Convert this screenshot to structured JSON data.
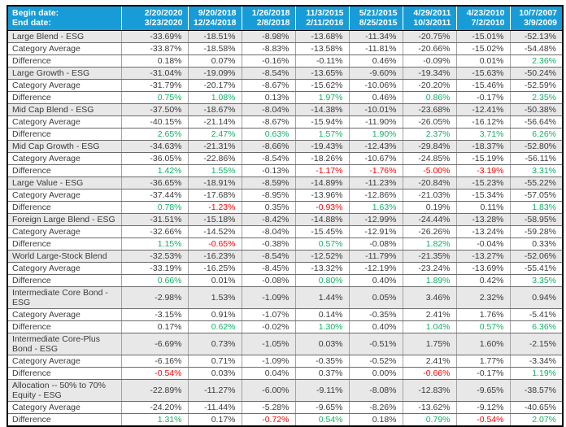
{
  "colors": {
    "header_bg": "#189CD8",
    "header_text": "#FFFFFF",
    "esg_row_bg": "#E8E8E8",
    "body_text": "#3B3B3B",
    "positive_green": "#10B262",
    "negative_red": "#FF0000",
    "difference_color_threshold": 0.5
  },
  "header": {
    "begin_label": "Begin date:",
    "end_label": "End date:"
  },
  "labels": {
    "category_average": "Category Average",
    "difference": "Difference"
  },
  "chart_data": {
    "type": "table",
    "columns": [
      {
        "begin": "2/20/2020",
        "end": "3/23/2020"
      },
      {
        "begin": "9/20/2018",
        "end": "12/24/2018"
      },
      {
        "begin": "1/26/2018",
        "end": "2/8/2018"
      },
      {
        "begin": "11/3/2015",
        "end": "2/11/2016"
      },
      {
        "begin": "5/21/2015",
        "end": "8/25/2015"
      },
      {
        "begin": "4/29/2011",
        "end": "10/3/2011"
      },
      {
        "begin": "4/23/2010",
        "end": "7/2/2010"
      },
      {
        "begin": "10/7/2007",
        "end": "3/9/2009"
      }
    ],
    "sections": [
      {
        "label": "Large Blend - ESG",
        "esg": [
          "-33.69%",
          "-18.51%",
          "-8.98%",
          "-13.68%",
          "-11.34%",
          "-20.75%",
          "-15.01%",
          "-52.13%"
        ],
        "category_average": [
          "-33.87%",
          "-18.58%",
          "-8.83%",
          "-13.58%",
          "-11.81%",
          "-20.66%",
          "-15.02%",
          "-54.48%"
        ],
        "difference": [
          "0.18%",
          "0.07%",
          "-0.16%",
          "-0.11%",
          "0.46%",
          "-0.09%",
          "0.01%",
          "2.36%"
        ]
      },
      {
        "label": "Large Growth - ESG",
        "esg": [
          "-31.04%",
          "-19.09%",
          "-8.54%",
          "-13.65%",
          "-9.60%",
          "-19.34%",
          "-15.63%",
          "-50.24%"
        ],
        "category_average": [
          "-31.79%",
          "-20.17%",
          "-8.67%",
          "-15.62%",
          "-10.06%",
          "-20.20%",
          "-15.46%",
          "-52.59%"
        ],
        "difference": [
          "0.75%",
          "1.08%",
          "0.13%",
          "1.97%",
          "0.46%",
          "0.86%",
          "-0.17%",
          "2.35%"
        ]
      },
      {
        "label": "Mid Cap Blend - ESG",
        "esg": [
          "-37.50%",
          "-18.67%",
          "-8.04%",
          "-14.38%",
          "-10.01%",
          "-23.68%",
          "-12.41%",
          "-50.38%"
        ],
        "category_average": [
          "-40.15%",
          "-21.14%",
          "-8.67%",
          "-15.94%",
          "-11.90%",
          "-26.05%",
          "-16.12%",
          "-56.64%"
        ],
        "difference": [
          "2.65%",
          "2.47%",
          "0.63%",
          "1.57%",
          "1.90%",
          "2.37%",
          "3.71%",
          "6.26%"
        ]
      },
      {
        "label": "Mid Cap Growth - ESG",
        "esg": [
          "-34.63%",
          "-21.31%",
          "-8.66%",
          "-19.43%",
          "-12.43%",
          "-29.84%",
          "-18.37%",
          "-52.80%"
        ],
        "category_average": [
          "-36.05%",
          "-22.86%",
          "-8.54%",
          "-18.26%",
          "-10.67%",
          "-24.85%",
          "-15.19%",
          "-56.11%"
        ],
        "difference": [
          "1.42%",
          "1.55%",
          "-0.13%",
          "-1.17%",
          "-1.76%",
          "-5.00%",
          "-3.19%",
          "3.31%"
        ]
      },
      {
        "label": "Large Value - ESG",
        "esg": [
          "-36.65%",
          "-18.91%",
          "-8.59%",
          "-14.89%",
          "-11.23%",
          "-20.84%",
          "-15.23%",
          "-55.22%"
        ],
        "category_average": [
          "-37.44%",
          "-17.68%",
          "-8.95%",
          "-13.96%",
          "-12.86%",
          "-21.03%",
          "-15.34%",
          "-57.05%"
        ],
        "difference": [
          "0.78%",
          "-1.23%",
          "0.35%",
          "-0.93%",
          "1.63%",
          "0.19%",
          "0.11%",
          "1.83%"
        ]
      },
      {
        "label": "Foreign Large Blend - ESG",
        "esg": [
          "-31.51%",
          "-15.18%",
          "-8.42%",
          "-14.88%",
          "-12.99%",
          "-24.44%",
          "-13.28%",
          "-58.95%"
        ],
        "category_average": [
          "-32.66%",
          "-14.52%",
          "-8.04%",
          "-15.45%",
          "-12.91%",
          "-26.26%",
          "-13.24%",
          "-59.28%"
        ],
        "difference": [
          "1.15%",
          "-0.65%",
          "-0.38%",
          "0.57%",
          "-0.08%",
          "1.82%",
          "-0.04%",
          "0.33%"
        ]
      },
      {
        "label": "World Large-Stock Blend",
        "esg": [
          "-32.53%",
          "-16.23%",
          "-8.54%",
          "-12.52%",
          "-11.79%",
          "-21.35%",
          "-13.27%",
          "-52.06%"
        ],
        "category_average": [
          "-33.19%",
          "-16.25%",
          "-8.45%",
          "-13.32%",
          "-12.19%",
          "-23.24%",
          "-13.69%",
          "-55.41%"
        ],
        "difference": [
          "0.66%",
          "0.01%",
          "-0.08%",
          "0.80%",
          "0.40%",
          "1.89%",
          "0.42%",
          "3.35%"
        ]
      },
      {
        "label": "Intermediate Core Bond - ESG",
        "esg": [
          "-2.98%",
          "1.53%",
          "-1.09%",
          "1.44%",
          "0.05%",
          "3.46%",
          "2.32%",
          "0.94%"
        ],
        "category_average": [
          "-3.15%",
          "0.91%",
          "-1.07%",
          "0.14%",
          "-0.35%",
          "2.41%",
          "1.76%",
          "-5.41%"
        ],
        "difference": [
          "0.17%",
          "0.62%",
          "-0.02%",
          "1.30%",
          "0.40%",
          "1.04%",
          "0.57%",
          "6.36%"
        ]
      },
      {
        "label": "Intermediate Core-Plus Bond - ESG",
        "esg": [
          "-6.69%",
          "0.73%",
          "-1.05%",
          "0.03%",
          "-0.51%",
          "1.75%",
          "1.60%",
          "-2.15%"
        ],
        "category_average": [
          "-6.16%",
          "0.71%",
          "-1.09%",
          "-0.35%",
          "-0.52%",
          "2.41%",
          "1.77%",
          "-3.34%"
        ],
        "difference": [
          "-0.54%",
          "0.03%",
          "0.04%",
          "0.37%",
          "0.00%",
          "-0.66%",
          "-0.17%",
          "1.19%"
        ]
      },
      {
        "label": "Allocation -- 50% to 70% Equity - ESG",
        "esg": [
          "-22.89%",
          "-11.27%",
          "-6.00%",
          "-9.11%",
          "-8.08%",
          "-12.83%",
          "-9.65%",
          "-38.57%"
        ],
        "category_average": [
          "-24.20%",
          "-11.44%",
          "-5.28%",
          "-9.65%",
          "-8.26%",
          "-13.62%",
          "-9.12%",
          "-40.65%"
        ],
        "difference": [
          "1.31%",
          "0.17%",
          "-0.72%",
          "0.54%",
          "0.18%",
          "0.79%",
          "-0.54%",
          "2.07%"
        ]
      }
    ]
  }
}
